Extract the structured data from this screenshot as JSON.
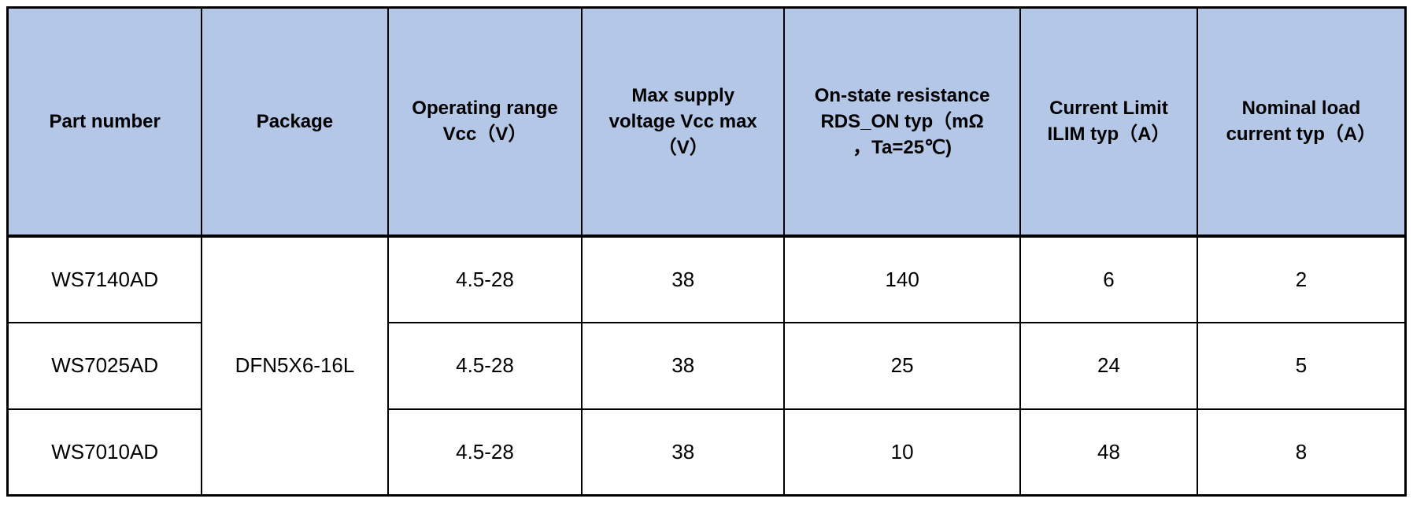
{
  "colors": {
    "header_background": "#b4c7e7",
    "border": "#000000",
    "text": "#000000",
    "row_background": "#ffffff"
  },
  "table": {
    "columns": [
      {
        "label": "Part number"
      },
      {
        "label": "Package"
      },
      {
        "label": "Operating range\nVcc（V）"
      },
      {
        "label": "Max supply\nvoltage Vcc max\n（V）"
      },
      {
        "label": "On-state resistance\nRDS_ON typ（mΩ\n，Ta=25℃)"
      },
      {
        "label": "Current Limit\nILIM typ（A）"
      },
      {
        "label": "Nominal load\ncurrent typ（A）"
      }
    ],
    "package_merged": "DFN5X6-16L",
    "rows": [
      {
        "part_number": "WS7140AD",
        "operating_range": "4.5-28",
        "vcc_max": "38",
        "rds_on": "140",
        "ilim": "6",
        "nominal_current": "2"
      },
      {
        "part_number": "WS7025AD",
        "operating_range": "4.5-28",
        "vcc_max": "38",
        "rds_on": "25",
        "ilim": "24",
        "nominal_current": "5"
      },
      {
        "part_number": "WS7010AD",
        "operating_range": "4.5-28",
        "vcc_max": "38",
        "rds_on": "10",
        "ilim": "48",
        "nominal_current": "8"
      }
    ]
  }
}
